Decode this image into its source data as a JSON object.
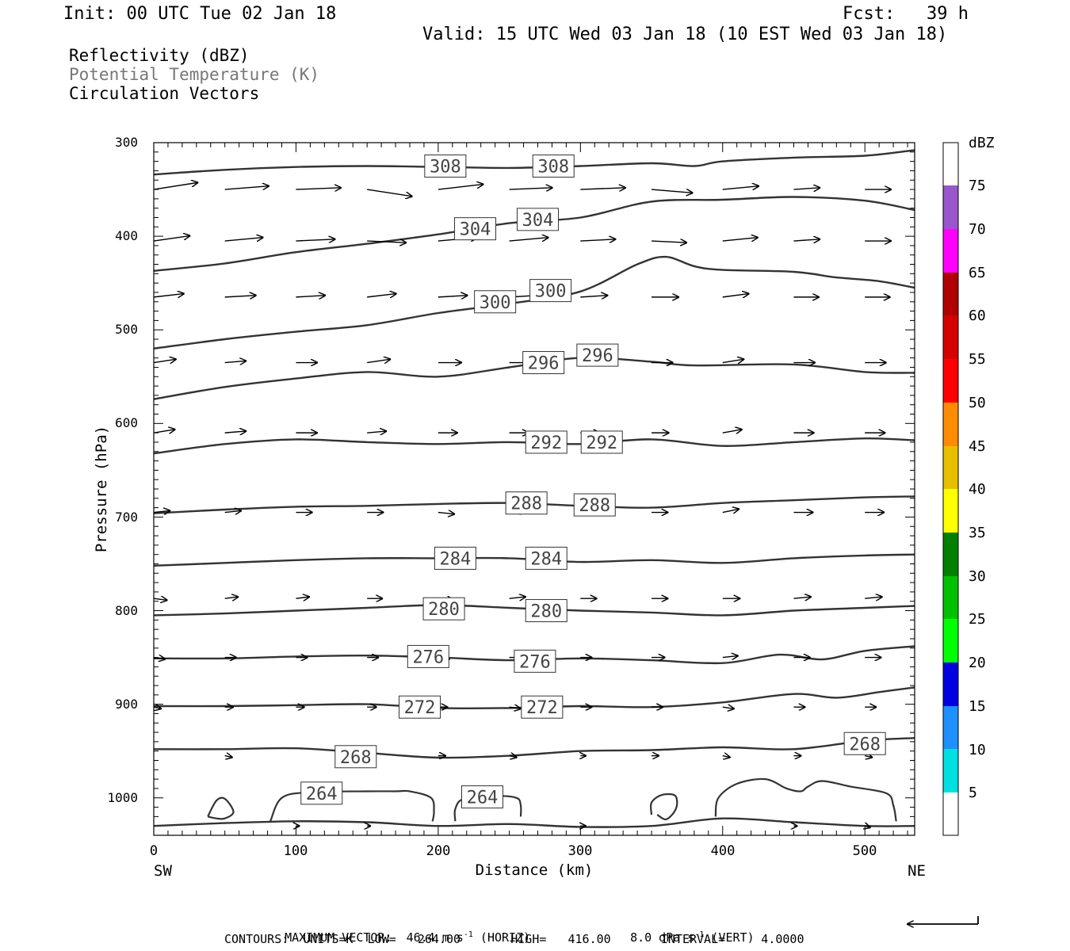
{
  "header": {
    "init": "Init: 00 UTC Tue 02 Jan 18",
    "fcst": "Fcst:   39 h",
    "valid": "Valid: 15 UTC Wed 03 Jan 18 (10 EST Wed 03 Jan 18)"
  },
  "legend": {
    "line1": "Reflectivity (dBZ)",
    "line2": "Potential Temperature (K)",
    "line3": "Circulation Vectors"
  },
  "colors": {
    "contour": "#333333",
    "legend_gray": "#777777",
    "frame": "#000000"
  },
  "colorbar": {
    "unit": "dBZ",
    "labels": [
      "5",
      "10",
      "15",
      "20",
      "25",
      "30",
      "35",
      "40",
      "45",
      "50",
      "55",
      "60",
      "65",
      "70",
      "75"
    ],
    "colors": [
      "#00e0e0",
      "#1e90ff",
      "#0000e0",
      "#00ff00",
      "#00c000",
      "#008000",
      "#ffff00",
      "#e6c000",
      "#ff8c00",
      "#ff0000",
      "#d40000",
      "#b00000",
      "#ff00ff",
      "#9955cc"
    ]
  },
  "footer": {
    "max_vector": "MAXIMUM VECTOR:  46.4 m s",
    "horiz": " (HORIZ)",
    "vert_val": "8.0 dPa s",
    "vert": " (VERT)",
    "superscript": "-1",
    "contours": "CONTOURS:  UNITS=K  LOW=   264.00       HIGH=   416.00       INTERVAL=     4.0000"
  },
  "chart_data": {
    "type": "line",
    "title": "",
    "xlabel": "Distance (km)",
    "ylabel": "Pressure (hPa)",
    "xlim": [
      0,
      535
    ],
    "ylim": [
      1040,
      300
    ],
    "x_ticks": [
      "0",
      "100",
      "200",
      "300",
      "400",
      "500"
    ],
    "y_ticks": [
      "300",
      "400",
      "500",
      "600",
      "700",
      "800",
      "900",
      "1000"
    ],
    "x_endpoints": [
      "SW",
      "NE"
    ],
    "contour_units": "K",
    "series": [
      {
        "name": "308",
        "x": [
          0,
          50,
          100,
          150,
          200,
          250,
          300,
          350,
          380,
          400,
          450,
          500,
          535
        ],
        "y": [
          334,
          329,
          326,
          325,
          326,
          327,
          325,
          322,
          325,
          320,
          316,
          314,
          308
        ],
        "labels": [
          {
            "x": 205,
            "y": 325
          },
          {
            "x": 281,
            "y": 325
          }
        ]
      },
      {
        "name": "304",
        "x": [
          0,
          50,
          100,
          150,
          200,
          250,
          300,
          350,
          400,
          450,
          500,
          535
        ],
        "y": [
          437,
          429,
          417,
          408,
          398,
          386,
          380,
          363,
          361,
          358,
          362,
          372
        ],
        "labels": [
          {
            "x": 226,
            "y": 392
          },
          {
            "x": 270,
            "y": 382
          }
        ]
      },
      {
        "name": "300",
        "x": [
          0,
          50,
          100,
          150,
          200,
          250,
          300,
          340,
          360,
          380,
          400,
          450,
          480,
          510,
          535
        ],
        "y": [
          520,
          510,
          502,
          495,
          482,
          472,
          459,
          430,
          422,
          432,
          436,
          438,
          444,
          448,
          455
        ],
        "labels": [
          {
            "x": 240,
            "y": 470
          },
          {
            "x": 279,
            "y": 458
          }
        ]
      },
      {
        "name": "296",
        "x": [
          0,
          50,
          100,
          150,
          200,
          250,
          300,
          350,
          380,
          450,
          500,
          535
        ],
        "y": [
          574,
          561,
          552,
          545,
          550,
          540,
          530,
          534,
          538,
          537,
          545,
          546
        ],
        "labels": [
          {
            "x": 274,
            "y": 535
          },
          {
            "x": 312,
            "y": 527
          }
        ]
      },
      {
        "name": "292",
        "x": [
          0,
          50,
          100,
          150,
          200,
          250,
          300,
          350,
          400,
          450,
          500,
          535
        ],
        "y": [
          632,
          622,
          617,
          620,
          622,
          620,
          622,
          617,
          624,
          620,
          616,
          618
        ],
        "labels": [
          {
            "x": 276,
            "y": 620
          },
          {
            "x": 315,
            "y": 620
          }
        ]
      },
      {
        "name": "288",
        "x": [
          0,
          50,
          100,
          150,
          200,
          250,
          300,
          350,
          400,
          450,
          500,
          535
        ],
        "y": [
          696,
          692,
          689,
          688,
          686,
          685,
          688,
          690,
          685,
          682,
          679,
          678
        ],
        "labels": [
          {
            "x": 262,
            "y": 685
          },
          {
            "x": 310,
            "y": 687
          }
        ]
      },
      {
        "name": "284",
        "x": [
          0,
          50,
          100,
          150,
          200,
          250,
          300,
          350,
          400,
          450,
          500,
          535
        ],
        "y": [
          752,
          749,
          746,
          744,
          744,
          744,
          748,
          746,
          749,
          744,
          741,
          740
        ],
        "labels": [
          {
            "x": 212,
            "y": 744
          },
          {
            "x": 276,
            "y": 744
          }
        ]
      },
      {
        "name": "280",
        "x": [
          0,
          50,
          100,
          150,
          200,
          250,
          300,
          350,
          400,
          450,
          500,
          535
        ],
        "y": [
          805,
          803,
          800,
          797,
          794,
          797,
          800,
          802,
          805,
          800,
          797,
          795
        ],
        "labels": [
          {
            "x": 204,
            "y": 798
          },
          {
            "x": 276,
            "y": 800
          }
        ]
      },
      {
        "name": "276",
        "x": [
          0,
          50,
          100,
          150,
          200,
          250,
          300,
          350,
          400,
          440,
          470,
          500,
          535
        ],
        "y": [
          851,
          851,
          849,
          848,
          850,
          853,
          851,
          853,
          856,
          847,
          852,
          843,
          838
        ],
        "labels": [
          {
            "x": 193,
            "y": 849
          },
          {
            "x": 268,
            "y": 854
          }
        ]
      },
      {
        "name": "272",
        "x": [
          0,
          50,
          100,
          150,
          200,
          250,
          300,
          350,
          400,
          450,
          480,
          510,
          535
        ],
        "y": [
          902,
          902,
          901,
          900,
          904,
          904,
          902,
          903,
          898,
          889,
          893,
          887,
          882
        ],
        "labels": [
          {
            "x": 187,
            "y": 903
          },
          {
            "x": 273,
            "y": 903
          }
        ]
      },
      {
        "name": "268",
        "x": [
          0,
          50,
          100,
          150,
          200,
          250,
          300,
          350,
          400,
          450,
          500,
          535
        ],
        "y": [
          948,
          948,
          947,
          952,
          957,
          955,
          950,
          949,
          946,
          948,
          939,
          936
        ],
        "labels": [
          {
            "x": 142,
            "y": 956
          },
          {
            "x": 500,
            "y": 942
          }
        ]
      },
      {
        "name": "264",
        "x": [
          0,
          50,
          100,
          150,
          200,
          250,
          300,
          350,
          400,
          450,
          500,
          535
        ],
        "y": [
          1030,
          1027,
          1025,
          1026,
          1030,
          1028,
          1031,
          1030,
          1022,
          1026,
          1030,
          1030
        ],
        "labels": [
          {
            "x": 118,
            "y": 995
          },
          {
            "x": 231,
            "y": 999
          }
        ]
      }
    ],
    "cells_264": [
      {
        "x": [
          38,
          44,
          50,
          56,
          50,
          44,
          38
        ],
        "y": [
          1020,
          1003,
          1001,
          1015,
          1022,
          1022,
          1020
        ]
      },
      {
        "x": [
          82,
          90,
          110,
          150,
          170,
          180,
          195,
          197,
          196
        ],
        "y": [
          1025,
          1000,
          994,
          993,
          993,
          993,
          1000,
          1015,
          1025
        ]
      },
      {
        "x": [
          212,
          212,
          218,
          240,
          255,
          258,
          258
        ],
        "y": [
          1025,
          1012,
          1001,
          998,
          1000,
          1008,
          1020
        ]
      },
      {
        "x": [
          350,
          350,
          357,
          366,
          368,
          366,
          360,
          354
        ],
        "y": [
          1018,
          1005,
          997,
          997,
          1005,
          1015,
          1023,
          1018
        ]
      },
      {
        "x": [
          395,
          397,
          410,
          430,
          445,
          455,
          460,
          470,
          490,
          515,
          520,
          522
        ],
        "y": [
          1020,
          1000,
          985,
          980,
          990,
          993,
          988,
          982,
          988,
          995,
          1008,
          1025
        ]
      }
    ],
    "vector_rows": [
      {
        "y": 350,
        "x": [
          0,
          50,
          100,
          150,
          200,
          250,
          300,
          350,
          400,
          450,
          500
        ],
        "u": [
          45,
          45,
          46,
          46,
          46,
          44,
          46,
          42,
          37,
          27,
          27
        ],
        "w": [
          4,
          2,
          1,
          -4,
          3,
          1,
          1,
          -2,
          2,
          1,
          0
        ]
      },
      {
        "y": 405,
        "x": [
          0,
          50,
          100,
          150,
          200,
          250,
          300,
          350,
          400,
          450,
          500
        ],
        "u": [
          37,
          39,
          40,
          40,
          40,
          40,
          36,
          36,
          36,
          27,
          27
        ],
        "w": [
          3,
          2,
          1,
          -1,
          2,
          2,
          1,
          -1,
          2,
          1,
          0
        ]
      },
      {
        "y": 465,
        "x": [
          0,
          50,
          100,
          150,
          200,
          250,
          300,
          350,
          400,
          450,
          500
        ],
        "u": [
          31,
          32,
          30,
          30,
          30,
          29,
          28,
          28,
          27,
          26,
          26
        ],
        "w": [
          2,
          1,
          1,
          2,
          1,
          1,
          1,
          0,
          2,
          0,
          0
        ]
      },
      {
        "y": 535,
        "x": [
          0,
          50,
          100,
          150,
          200,
          250,
          300,
          350,
          400,
          450,
          500
        ],
        "u": [
          23,
          22,
          22,
          24,
          24,
          22,
          22,
          22,
          22,
          22,
          22
        ],
        "w": [
          2,
          1,
          0,
          2,
          0,
          0,
          1,
          0,
          2,
          0,
          0
        ]
      },
      {
        "y": 610,
        "x": [
          0,
          50,
          100,
          150,
          200,
          250,
          300,
          350,
          400,
          450,
          500
        ],
        "u": [
          22,
          22,
          22,
          20,
          20,
          20,
          20,
          18,
          20,
          21,
          21
        ],
        "w": [
          2,
          1,
          0,
          1,
          0,
          0,
          0,
          0,
          2,
          0,
          0
        ]
      },
      {
        "y": 695,
        "x": [
          0,
          50,
          100,
          150,
          200,
          250,
          300,
          350,
          400,
          450,
          500
        ],
        "u": [
          17,
          17,
          17,
          17,
          17,
          17,
          17,
          17,
          17,
          20,
          20
        ],
        "w": [
          1,
          1,
          0,
          0,
          -1,
          1,
          0,
          0,
          2,
          0,
          0
        ]
      },
      {
        "y": 787,
        "x": [
          0,
          50,
          100,
          150,
          200,
          250,
          300,
          350,
          400,
          450,
          500
        ],
        "u": [
          14,
          14,
          14,
          16,
          16,
          17,
          17,
          17,
          18,
          18,
          18
        ],
        "w": [
          -1,
          1,
          1,
          0,
          -1,
          1,
          0,
          0,
          0,
          1,
          1
        ]
      },
      {
        "y": 850,
        "x": [
          0,
          50,
          100,
          150,
          200,
          250,
          300,
          350,
          400,
          450,
          500
        ],
        "u": [
          12,
          12,
          12,
          12,
          12,
          12,
          12,
          14,
          16,
          17,
          17
        ],
        "w": [
          -1,
          0,
          0,
          0,
          -1,
          0,
          0,
          0,
          1,
          0,
          0
        ]
      },
      {
        "y": 903,
        "x": [
          0,
          50,
          100,
          150,
          200,
          250,
          300,
          350,
          400,
          450,
          500
        ],
        "u": [
          8,
          9,
          9,
          10,
          10,
          12,
          12,
          12,
          12,
          12,
          12
        ],
        "w": [
          -1,
          0,
          0,
          0,
          0,
          -1,
          0,
          0,
          -1,
          0,
          0
        ]
      },
      {
        "y": 955,
        "x": [
          50,
          150,
          200,
          250,
          300,
          350,
          400,
          450,
          500
        ],
        "u": [
          8,
          8,
          8,
          8,
          6,
          8,
          8,
          8,
          8
        ],
        "w": [
          -1,
          0,
          0,
          -1,
          0,
          0,
          -1,
          0,
          -1
        ]
      },
      {
        "y": 1030,
        "x": [
          100,
          150,
          300,
          450,
          500
        ],
        "u": [
          4,
          4,
          6,
          4,
          6
        ],
        "w": [
          0,
          0,
          0,
          0,
          -1
        ]
      }
    ]
  }
}
